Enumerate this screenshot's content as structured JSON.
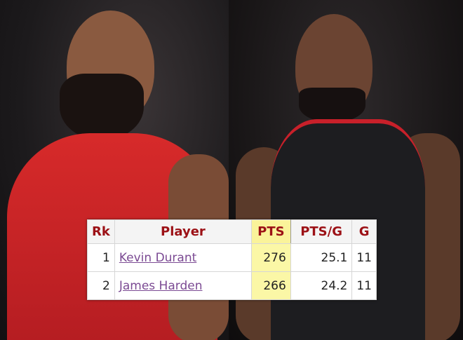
{
  "table": {
    "headers": [
      "Rk",
      "Player",
      "PTS",
      "PTS/G",
      "G"
    ],
    "rows": [
      {
        "rk": "1",
        "player": "Kevin Durant",
        "pts": "276",
        "ptsg": "25.1",
        "g": "11"
      },
      {
        "rk": "2",
        "player": "James Harden",
        "pts": "266",
        "ptsg": "24.2",
        "g": "11"
      }
    ],
    "highlight_color": "#faf39a",
    "header_text_color": "#9c1116",
    "link_color": "#7b4a93"
  }
}
